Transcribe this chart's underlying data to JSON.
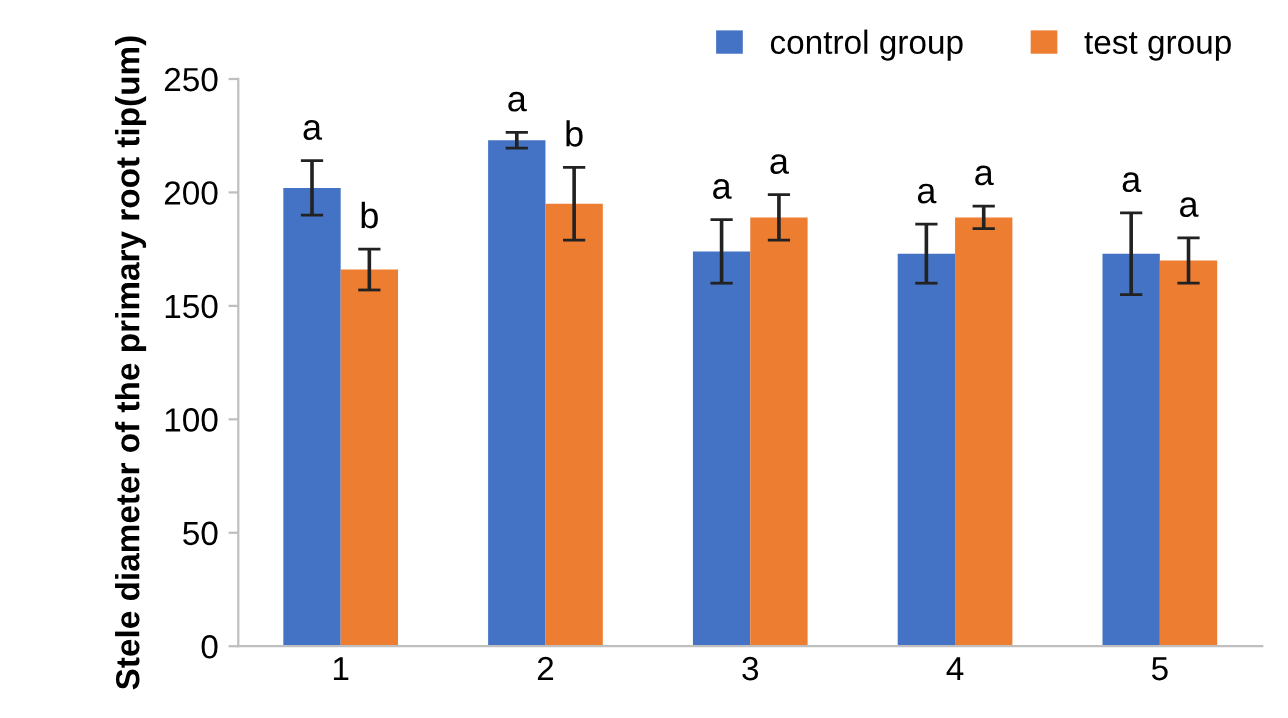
{
  "chart_data": {
    "type": "bar",
    "ylabel": "Stele diameter of the primary root tip(um)",
    "categories": [
      "1",
      "2",
      "3",
      "4",
      "5"
    ],
    "series": [
      {
        "name": "control group",
        "color": "#4472c4",
        "values": [
          202,
          223,
          174,
          173,
          173
        ],
        "errors": [
          12,
          3.5,
          14,
          13,
          18
        ]
      },
      {
        "name": "test group",
        "color": "#ed7d31",
        "values": [
          166,
          195,
          189,
          189,
          170
        ],
        "errors": [
          9,
          16,
          10,
          5,
          10
        ]
      }
    ],
    "ylim": [
      0,
      250
    ],
    "yticks": [
      0,
      50,
      100,
      150,
      200,
      250
    ],
    "legend": "top right",
    "grid": false,
    "annotations": [
      "a",
      "b",
      "a",
      "b",
      "a",
      "a",
      "a",
      "a",
      "a",
      "a"
    ]
  }
}
